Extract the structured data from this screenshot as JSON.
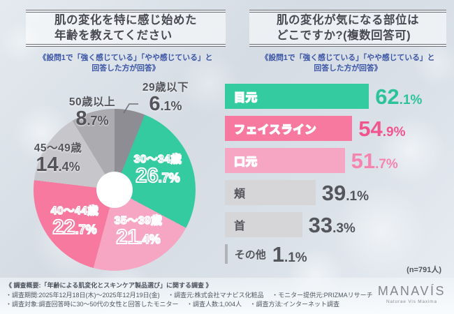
{
  "left_panel": {
    "title_lines": [
      "肌の変化を特に感じ始めた",
      "年齢を教えてください"
    ],
    "subtitle_lines": [
      "《設問1で「強く感じている」「やや感じている」と",
      "回答した方が回答》"
    ]
  },
  "right_panel": {
    "title_lines": [
      "肌の変化が気になる部位は",
      "どこですか?(複数回答可)"
    ],
    "subtitle_lines": [
      "《設問1で「強く感じている」「やや感じている」と",
      "回答した方が回答》"
    ],
    "sample_note": "(n=791人)"
  },
  "chart_data": [
    {
      "type": "pie",
      "title": "肌の変化を特に感じ始めた年齢を教えてください",
      "note": "《設問1で「強く感じている」「やや感じている」と回答した方が回答》",
      "unit": "%",
      "donut_hole": true,
      "start_angle_deg": 0,
      "direction": "clockwise",
      "segments": [
        {
          "label": "29歳以下",
          "value": 6.1,
          "color": "#8e8d93",
          "label_color": "#54545b"
        },
        {
          "label": "30〜34歳",
          "value": 26.7,
          "color": "#35cba1",
          "label_color": "#2cc198"
        },
        {
          "label": "35〜39歳",
          "value": 21.4,
          "color": "#f6a6c3",
          "label_color": "#f49cbd"
        },
        {
          "label": "40〜44歳",
          "value": 22.7,
          "color": "#f8799f",
          "label_color": "#f66f99"
        },
        {
          "label": "45〜49歳",
          "value": 14.4,
          "color": "#c7c6ca",
          "label_color": "#54545b"
        },
        {
          "label": "50歳以上",
          "value": 8.7,
          "color": "#acabb0",
          "label_color": "#54545b"
        }
      ]
    },
    {
      "type": "bar",
      "orientation": "horizontal",
      "title": "肌の変化が気になる部位はどこですか?(複数回答可)",
      "note": "《設問1で「強く感じている」「やや感じている」と回答した方が回答》",
      "unit": "%",
      "xlim": [
        0,
        100
      ],
      "sample_note": "(n=791人)",
      "categories": [
        "目元",
        "フェイスライン",
        "口元",
        "頬",
        "首",
        "その他"
      ],
      "values": [
        62.1,
        54.9,
        51.7,
        39.1,
        33.3,
        1.1
      ],
      "colors": [
        "#35cba1",
        "#f8799f",
        "#f6a6c3",
        "#d6d5d8",
        "#d6d5d8",
        "#b3b2b7"
      ],
      "label_colors": [
        "#2cc198",
        "#f66f99",
        "#f49cbd",
        "#55555c",
        "#55555c",
        "#55555c"
      ],
      "value_colors": [
        "#2cc39b",
        "#f2548c",
        "#f584ae",
        "#55555c",
        "#55555c",
        "#55555c"
      ],
      "label_styles": [
        "hollow",
        "hollow",
        "hollow",
        "plain",
        "plain",
        "outside"
      ]
    }
  ],
  "footer": {
    "line1": "《 調査概要:「年齢による肌変化とスキンケア製品選び」に関する調査 》",
    "line2": "・調査期間:2025年12月18日(木)〜2025年12月19日(金)　 ・調査元:株式会社マナビス化粧品　 ・モニター提供元:PRIZMAリサーチ",
    "line3": "・調査対象:調査回答時に30〜50代の女性と回答したモニター　 ・調査人数:1,004人　 ・調査方法:インターネット調査",
    "logo_name": "MANAVÍS",
    "logo_tagline": "Naturae Vis Maxima"
  }
}
